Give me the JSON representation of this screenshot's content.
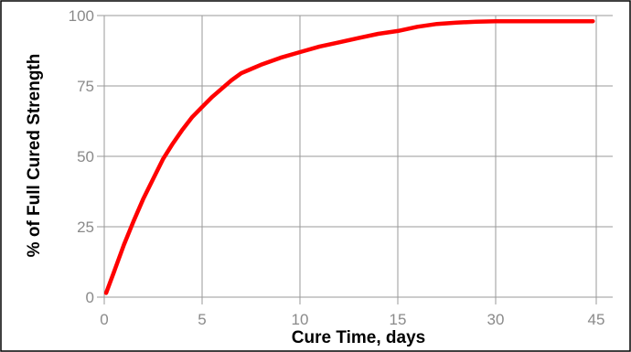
{
  "chart_data": {
    "type": "line",
    "title": "",
    "xlabel": "Cure Time, days",
    "ylabel": "% of Full Cured Strength",
    "x_ticks": [
      "0",
      "5",
      "10",
      "15",
      "30",
      "45"
    ],
    "y_ticks": [
      "0",
      "25",
      "50",
      "75",
      "100"
    ],
    "x_scale_note": "piecewise axis: equal spacing between ticks 0,5,10,15,30,45",
    "ylim": [
      0,
      100
    ],
    "grid": true,
    "legend": "none",
    "series": [
      {
        "color": "#ff0000",
        "x": [
          0.1,
          0.5,
          1,
          1.5,
          2,
          2.5,
          3,
          3.5,
          4,
          4.5,
          5,
          5.5,
          6,
          6.5,
          7,
          7.5,
          8,
          9,
          10,
          11,
          12,
          13,
          14,
          15,
          18,
          21,
          24,
          27,
          30,
          33,
          36,
          39,
          42,
          44.5
        ],
        "y": [
          1.5,
          9,
          18.5,
          27,
          35,
          42,
          49,
          54.5,
          59.5,
          64,
          67.5,
          71,
          74,
          77,
          79.5,
          81,
          82.5,
          85,
          87,
          89,
          90.5,
          92,
          93.5,
          94.5,
          96,
          97,
          97.5,
          97.8,
          98,
          98,
          98,
          98,
          98,
          98
        ]
      }
    ]
  }
}
